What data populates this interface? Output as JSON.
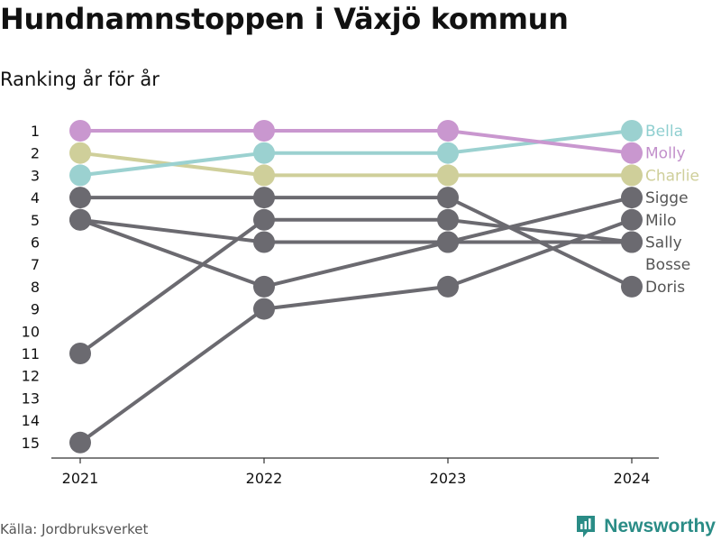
{
  "title": "Hundnamnstoppen i Växjö kommun",
  "subtitle": "Ranking år för år",
  "source": "Källa: Jordbruksverket",
  "brand": "Newsworthy",
  "chart_data": {
    "type": "line",
    "chart_kind": "bump",
    "x": [
      "2021",
      "2022",
      "2023",
      "2024"
    ],
    "yticks": [
      "1",
      "2",
      "3",
      "4",
      "5",
      "6",
      "7",
      "8",
      "9",
      "10",
      "11",
      "12",
      "13",
      "14",
      "15"
    ],
    "ylim": [
      1,
      15
    ],
    "y_reversed": true,
    "grid": false,
    "series": [
      {
        "name": "Sigge",
        "values": [
          5,
          8,
          6,
          4
        ],
        "color": "#6b6a70"
      },
      {
        "name": "Milo",
        "values": [
          15,
          9,
          8,
          5
        ],
        "color": "#6b6a70"
      },
      {
        "name": "Sally",
        "values": [
          5,
          6,
          6,
          6
        ],
        "color": "#6b6a70"
      },
      {
        "name": "Bosse",
        "values": [
          11,
          5,
          5,
          6
        ],
        "color": "#6b6a70"
      },
      {
        "name": "Doris",
        "values": [
          4,
          4,
          4,
          8
        ],
        "color": "#6b6a70"
      },
      {
        "name": "Charlie",
        "values": [
          2,
          3,
          3,
          3
        ],
        "color": "#cfcf9a"
      },
      {
        "name": "Bella",
        "values": [
          3,
          2,
          2,
          1
        ],
        "color": "#9bd1d0"
      },
      {
        "name": "Molly",
        "values": [
          1,
          1,
          1,
          2
        ],
        "color": "#c997cf"
      }
    ],
    "end_labels": [
      {
        "name": "Bella",
        "rank": 1,
        "color": "#8fcfd0"
      },
      {
        "name": "Molly",
        "rank": 2,
        "color": "#c28fcb"
      },
      {
        "name": "Charlie",
        "rank": 3,
        "color": "#cfcf9a"
      },
      {
        "name": "Sigge",
        "rank": 4,
        "color": "#555555"
      },
      {
        "name": "Milo",
        "rank": 5,
        "color": "#555555"
      },
      {
        "name": "Sally",
        "rank": 6,
        "color": "#555555"
      },
      {
        "name": "Bosse",
        "rank": 7,
        "color": "#555555"
      },
      {
        "name": "Doris",
        "rank": 8,
        "color": "#555555"
      }
    ]
  }
}
